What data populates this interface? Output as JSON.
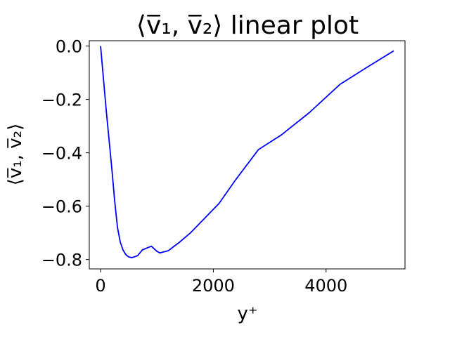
{
  "chart_data": {
    "type": "line",
    "title": "⟨v̅₁, v̅₂⟩ linear plot",
    "xlabel": "y⁺",
    "ylabel": "⟨v̅₁, v̅₂⟩",
    "xlim": [
      -200,
      5400
    ],
    "ylim": [
      -0.835,
      0.02
    ],
    "xticks": [
      {
        "value": 0,
        "label": "0"
      },
      {
        "value": 2000,
        "label": "2000"
      },
      {
        "value": 4000,
        "label": "4000"
      }
    ],
    "yticks": [
      {
        "value": 0.0,
        "label": "0.0"
      },
      {
        "value": -0.2,
        "label": "−0.2"
      },
      {
        "value": -0.4,
        "label": "−0.4"
      },
      {
        "value": -0.6,
        "label": "−0.6"
      },
      {
        "value": -0.8,
        "label": "−0.8"
      }
    ],
    "grid": false,
    "series": [
      {
        "color": "#0000ff",
        "points": [
          [
            0,
            0.0
          ],
          [
            50,
            -0.12
          ],
          [
            100,
            -0.24
          ],
          [
            150,
            -0.35
          ],
          [
            200,
            -0.46
          ],
          [
            250,
            -0.58
          ],
          [
            300,
            -0.68
          ],
          [
            350,
            -0.735
          ],
          [
            400,
            -0.765
          ],
          [
            450,
            -0.782
          ],
          [
            500,
            -0.79
          ],
          [
            550,
            -0.793
          ],
          [
            600,
            -0.79
          ],
          [
            660,
            -0.785
          ],
          [
            740,
            -0.764
          ],
          [
            820,
            -0.757
          ],
          [
            900,
            -0.75
          ],
          [
            1000,
            -0.769
          ],
          [
            1050,
            -0.775
          ],
          [
            1200,
            -0.767
          ],
          [
            1400,
            -0.735
          ],
          [
            1600,
            -0.699
          ],
          [
            2100,
            -0.59
          ],
          [
            2400,
            -0.5
          ],
          [
            2800,
            -0.388
          ],
          [
            3200,
            -0.334
          ],
          [
            3700,
            -0.25
          ],
          [
            4250,
            -0.143
          ],
          [
            4700,
            -0.083
          ],
          [
            5200,
            -0.018
          ]
        ]
      }
    ]
  }
}
